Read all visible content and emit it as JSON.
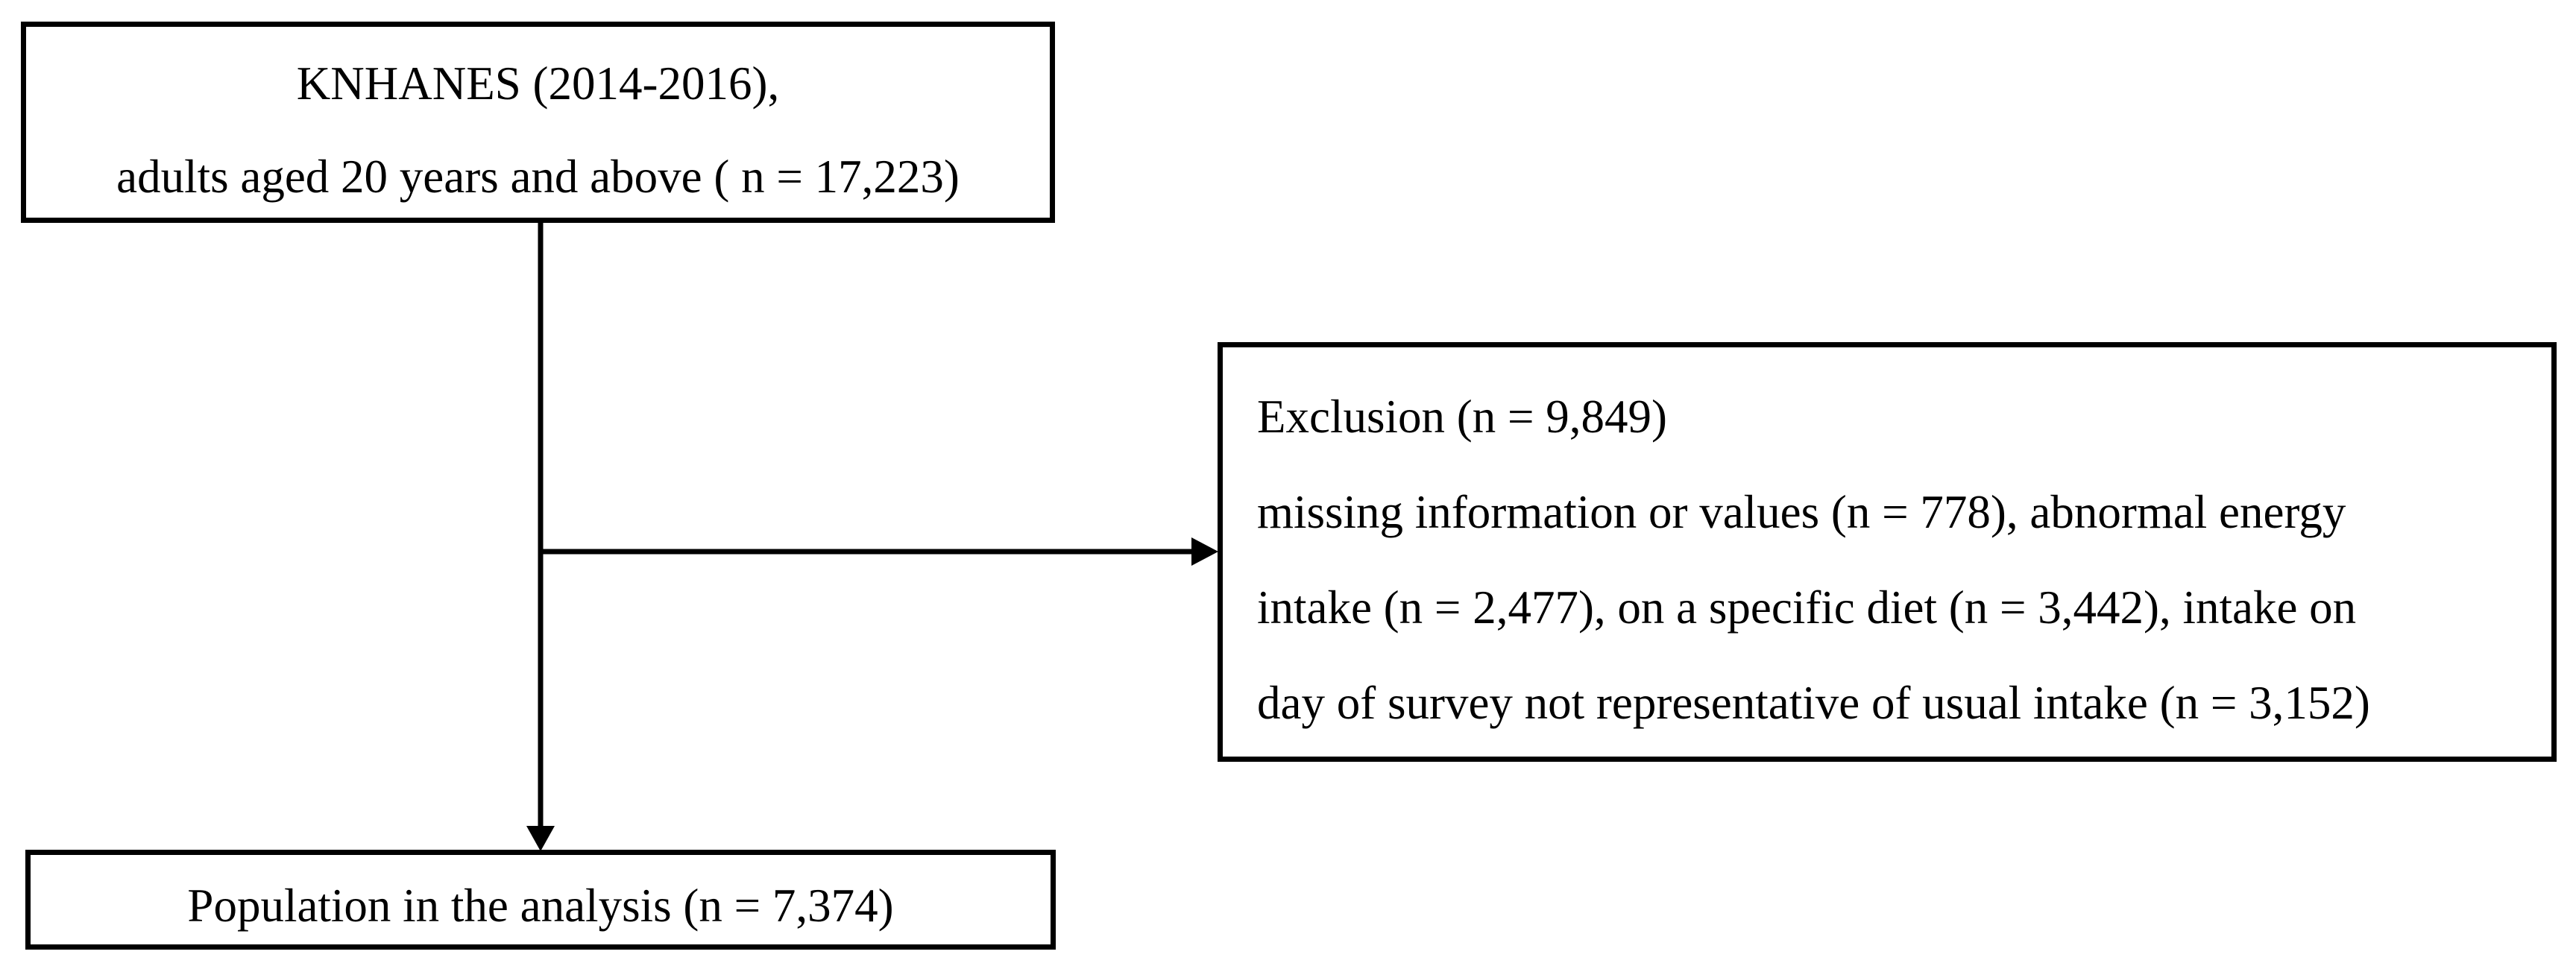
{
  "flowchart": {
    "source_box": {
      "line1": "KNHANES (2014-2016),",
      "line2": "adults aged 20 years and above ( n = 17,223)"
    },
    "exclusion_box": {
      "title": "Exclusion (n = 9,849)",
      "line1": "missing information or values (n = 778), abnormal energy",
      "line2": "intake (n =  2,477), on a specific diet (n = 3,442), intake on",
      "line3": "day of survey not representative of usual intake (n = 3,152)"
    },
    "result_box": {
      "label": "Population in the analysis (n = 7,374)"
    },
    "colors": {
      "stroke": "#000000",
      "background": "#ffffff"
    }
  }
}
